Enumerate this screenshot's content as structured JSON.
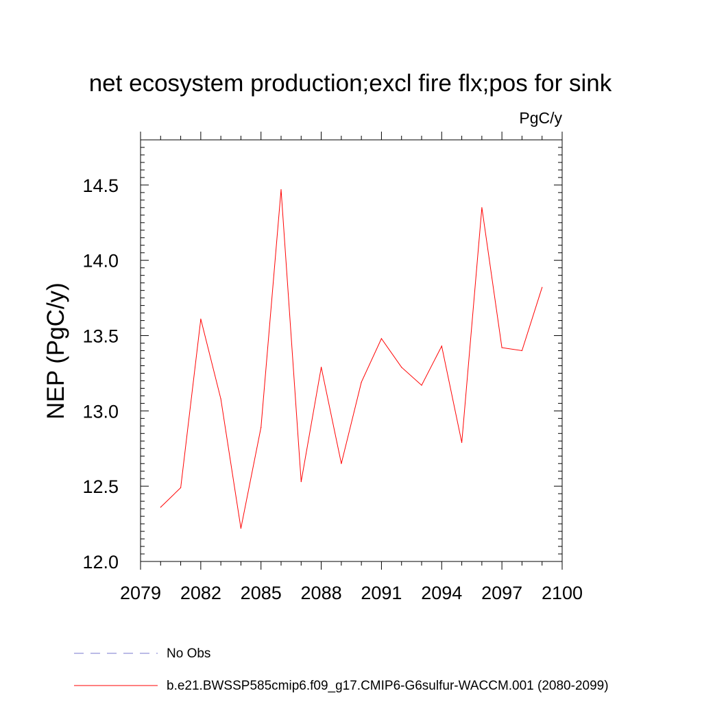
{
  "chart_data": {
    "type": "line",
    "title": "net ecosystem production;excl fire flx;pos for sink",
    "units_label": "PgC/y",
    "ylabel": "NEP  (PgC/y)",
    "xlabel": "",
    "xlim": [
      2079,
      2100
    ],
    "ylim": [
      12.0,
      14.8
    ],
    "x_ticks": [
      2079,
      2082,
      2085,
      2088,
      2091,
      2094,
      2097,
      2100
    ],
    "x_tick_labels": [
      "2079",
      "2082",
      "2085",
      "2088",
      "2091",
      "2094",
      "2097",
      "2100"
    ],
    "y_ticks": [
      12.0,
      12.5,
      13.0,
      13.5,
      14.0,
      14.5
    ],
    "y_tick_labels": [
      "12.0",
      "12.5",
      "13.0",
      "13.5",
      "14.0",
      "14.5"
    ],
    "grid": false,
    "legend_position": "bottom",
    "series": [
      {
        "name": "b.e21.BWSSP585cmip6.f09_g17.CMIP6-G6sulfur-WACCM.001 (2080-2099)",
        "color": "#ff0000",
        "style": "solid",
        "x": [
          2080,
          2081,
          2082,
          2083,
          2084,
          2085,
          2086,
          2087,
          2088,
          2089,
          2090,
          2091,
          2092,
          2093,
          2094,
          2095,
          2096,
          2097,
          2098,
          2099
        ],
        "y": [
          12.36,
          12.49,
          13.61,
          13.08,
          12.22,
          12.89,
          14.47,
          12.53,
          13.29,
          12.65,
          13.19,
          13.48,
          13.29,
          13.17,
          13.43,
          12.79,
          14.35,
          13.42,
          13.4,
          13.82
        ]
      }
    ],
    "legend": [
      {
        "label": "No Obs",
        "color": "#7777cc",
        "style": "dashed"
      },
      {
        "label": "b.e21.BWSSP585cmip6.f09_g17.CMIP6-G6sulfur-WACCM.001 (2080-2099)",
        "color": "#ff0000",
        "style": "solid"
      }
    ]
  }
}
